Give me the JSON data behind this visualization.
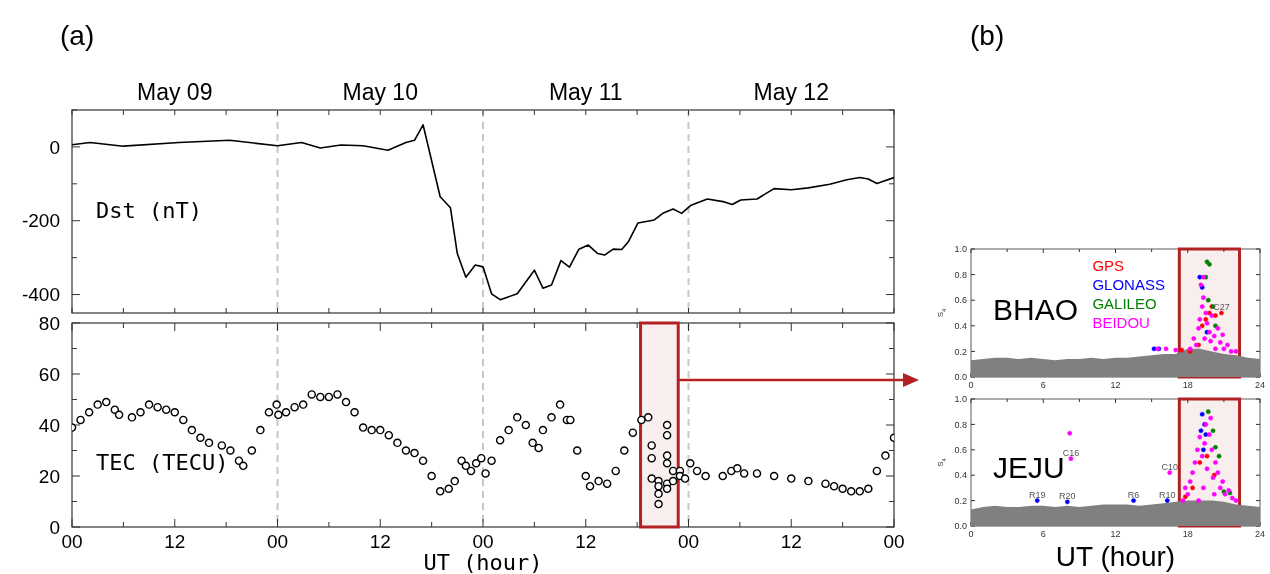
{
  "chart_data": [
    {
      "type": "line",
      "title": "(a)",
      "ylabel": "Dst (nT)",
      "xlim": [
        0,
        96
      ],
      "ylim": [
        -450,
        100
      ],
      "tick_labels": "y",
      "xticks": [
        {
          "value": 0,
          "label": null
        },
        {
          "value": 6,
          "label": null
        },
        {
          "value": 12,
          "label": null
        },
        {
          "value": 18,
          "label": null
        },
        {
          "value": 24,
          "label": null
        },
        {
          "value": 30,
          "label": null
        },
        {
          "value": 36,
          "label": null
        },
        {
          "value": 42,
          "label": null
        },
        {
          "value": 48,
          "label": null
        },
        {
          "value": 54,
          "label": null
        },
        {
          "value": 60,
          "label": null
        },
        {
          "value": 66,
          "label": null
        },
        {
          "value": 72,
          "label": null
        },
        {
          "value": 78,
          "label": null
        },
        {
          "value": 84,
          "label": null
        },
        {
          "value": 90,
          "label": null
        },
        {
          "value": 96,
          "label": null
        }
      ],
      "annotations": [
        "May 09",
        "May 10",
        "May 11",
        "May 12"
      ],
      "yticks": [
        {
          "value": -400,
          "label": "-400"
        },
        {
          "value": -300,
          "label": null
        },
        {
          "value": -200,
          "label": "-200"
        },
        {
          "value": -100,
          "label": null
        },
        0,
        {
          "value": 100,
          "label": null
        }
      ],
      "ref_lines": [
        {
          "axis": "x",
          "value": 24,
          "color": "#c8c8c8",
          "line_style": "dashed"
        },
        {
          "axis": "x",
          "value": 48,
          "color": "#c8c8c8",
          "line_style": "dashed"
        },
        {
          "axis": "x",
          "value": 72,
          "color": "#c8c8c8",
          "line_style": "dashed"
        }
      ],
      "series": [
        {
          "color": "#000000",
          "x": [
            0,
            2.1,
            6,
            12.5,
            18.4,
            24,
            26.8,
            29,
            31.4,
            34,
            36.9,
            39,
            40,
            41,
            43,
            44.2,
            45,
            46,
            47.1,
            48,
            49,
            50,
            52,
            54,
            55,
            56,
            57.1,
            58.1,
            59.2,
            60.3,
            61.4,
            62.2,
            63.2,
            64.2,
            65,
            66.1,
            68,
            69,
            70.2,
            71.2,
            72.3,
            74.2,
            76.2,
            77.1,
            78.1,
            80,
            82,
            84,
            86,
            88.5,
            90.5,
            92,
            93,
            94,
            96
          ],
          "values": [
            6,
            12,
            2,
            12,
            18,
            3,
            12,
            -3,
            5,
            3,
            -9,
            12,
            18,
            60,
            -135,
            -165,
            -289,
            -353,
            -320,
            -325,
            -398,
            -414,
            -398,
            -334,
            -383,
            -374,
            -308,
            -326,
            -277,
            -266,
            -289,
            -293,
            -277,
            -278,
            -256,
            -206,
            -198,
            -180,
            -168,
            -180,
            -158,
            -141,
            -149,
            -156,
            -144,
            -141,
            -113,
            -116,
            -111,
            -101,
            -89,
            -83,
            -87,
            -99,
            -83
          ]
        }
      ]
    },
    {
      "type": "scatter",
      "ylabel": "TEC (TECU)",
      "xlabel": "UT (hour)",
      "xlim": [
        0,
        96
      ],
      "ylim": [
        0,
        80
      ],
      "marker": "circle",
      "xticks": [
        {
          "value": 0,
          "label": "00"
        },
        {
          "value": 6,
          "label": null
        },
        {
          "value": 12,
          "label": "12"
        },
        {
          "value": 18,
          "label": null
        },
        {
          "value": 24,
          "label": "00"
        },
        {
          "value": 30,
          "label": null
        },
        {
          "value": 36,
          "label": "12"
        },
        {
          "value": 42,
          "label": null
        },
        {
          "value": 48,
          "label": "00"
        },
        {
          "value": 54,
          "label": null
        },
        {
          "value": 60,
          "label": "12"
        },
        {
          "value": 66,
          "label": null
        },
        {
          "value": 72,
          "label": "00"
        },
        {
          "value": 78,
          "label": null
        },
        {
          "value": 84,
          "label": "12"
        },
        {
          "value": 90,
          "label": null
        },
        {
          "value": 96,
          "label": "00"
        }
      ],
      "yticks": [
        0,
        {
          "value": 10,
          "label": null
        },
        20,
        {
          "value": 30,
          "label": null
        },
        40,
        {
          "value": 50,
          "label": null
        },
        60,
        {
          "value": 70,
          "label": null
        },
        80
      ],
      "ref_lines": [
        {
          "axis": "x",
          "value": 24,
          "color": "#c8c8c8",
          "line_style": "dashed"
        },
        {
          "axis": "x",
          "value": 48,
          "color": "#c8c8c8",
          "line_style": "dashed"
        },
        {
          "axis": "x",
          "value": 72,
          "color": "#c8c8c8",
          "line_style": "dashed"
        }
      ],
      "bands": [
        {
          "axis": "x",
          "from": 66.4,
          "to": 70.8,
          "color": "#b22222"
        }
      ],
      "series": [
        {
          "color": "#000000",
          "x": [
            0,
            1,
            2,
            3,
            4,
            5,
            5.5,
            7,
            8,
            9,
            10,
            11,
            12,
            13,
            14,
            15,
            16,
            17.5,
            18.5,
            19.5,
            20,
            21,
            22,
            23,
            23.9,
            24.1,
            25,
            26,
            27,
            28,
            29,
            30,
            31,
            32,
            33,
            34,
            35,
            36,
            37,
            38,
            39,
            40,
            41,
            42,
            43,
            44,
            44.7,
            45.5,
            46,
            46.6,
            47.2,
            47.8,
            48.3,
            49,
            50,
            51,
            52,
            53,
            53.8,
            54.5,
            55,
            56,
            57,
            57.8,
            58.2,
            59,
            60,
            60.5,
            61.5,
            62.5,
            63.5,
            64.5,
            65.5,
            66.5,
            67.3,
            67.7,
            67.7,
            67.7,
            68.5,
            68.5,
            68.5,
            68.5,
            69.5,
            69.5,
            69.5,
            69.5,
            69.5,
            69.5,
            70.2,
            70.2,
            71,
            71,
            71.6,
            72.2,
            73,
            74,
            76,
            77,
            77.7,
            78.5,
            80,
            82,
            84,
            86,
            88,
            89,
            90,
            91,
            92,
            93,
            94,
            95,
            96
          ],
          "values": [
            39,
            42,
            45,
            48,
            49,
            46,
            44,
            43,
            45,
            48,
            47,
            46,
            45,
            42,
            38,
            35,
            33,
            32,
            30,
            26,
            24,
            30,
            38,
            45,
            48,
            44,
            45,
            47,
            48,
            52,
            51,
            51,
            52,
            49,
            45,
            39,
            38,
            38,
            36,
            33,
            30,
            29,
            26,
            20,
            14,
            15,
            18,
            26,
            24,
            22,
            25,
            27,
            21,
            26,
            34,
            38,
            43,
            40,
            33,
            31,
            38,
            43,
            48,
            42,
            42,
            30,
            20,
            16,
            18,
            17,
            22,
            30,
            37,
            42,
            43,
            32,
            27,
            19,
            18,
            13,
            9,
            16,
            40,
            36,
            28,
            25,
            17,
            15,
            22,
            18,
            22,
            20,
            19,
            25,
            22,
            20,
            20,
            22,
            23,
            21,
            21,
            20,
            19,
            18,
            17,
            16,
            15,
            14,
            14,
            15,
            22,
            28,
            35
          ]
        }
      ]
    },
    {
      "type": "scatter",
      "title": "(b)",
      "ylabel": "S$_{4}$",
      "xlim": [
        0,
        24
      ],
      "ylim": [
        0,
        1
      ],
      "legend": "top",
      "annotations": [
        "BHAO",
        {
          "text": "C27",
          "x": 20.8,
          "y": 0.5
        }
      ],
      "xticks": [
        0,
        {
          "value": 3,
          "label": null
        },
        6,
        {
          "value": 9,
          "label": null
        },
        12,
        {
          "value": 15,
          "label": null
        },
        18,
        {
          "value": 21,
          "label": null
        },
        24
      ],
      "yticks": [
        {
          "value": 0,
          "label": "0.0"
        },
        {
          "value": 0.2,
          "label": "0.2"
        },
        {
          "value": 0.4,
          "label": "0.4"
        },
        {
          "value": 0.6,
          "label": "0.6"
        },
        {
          "value": 0.8,
          "label": "0.8"
        },
        {
          "value": 1,
          "label": "1.0"
        }
      ],
      "bands": [
        {
          "axis": "x",
          "from": 17.3,
          "to": 22.3,
          "color": "#b22222"
        }
      ],
      "series": [
        {
          "type": "area",
          "color": "#808080",
          "x": [
            0,
            1,
            2,
            3,
            4,
            5,
            6,
            7,
            8,
            9,
            10,
            11,
            12,
            13,
            14,
            15,
            16,
            17,
            18,
            19,
            20,
            21,
            22,
            23,
            24
          ],
          "values": [
            0.13,
            0.14,
            0.15,
            0.15,
            0.14,
            0.15,
            0.14,
            0.13,
            0.14,
            0.14,
            0.15,
            0.14,
            0.15,
            0.15,
            0.16,
            0.17,
            0.18,
            0.18,
            0.22,
            0.22,
            0.2,
            0.18,
            0.17,
            0.15,
            0.14
          ]
        },
        {
          "name": "GPS",
          "color": "#ff0000",
          "marker": "circle",
          "x": [
            19.5,
            19.8,
            20,
            20.3,
            19.2,
            18.9,
            18.2,
            17.5,
            20.8
          ],
          "values": [
            0.45,
            0.5,
            0.55,
            0.48,
            0.4,
            0.25,
            0.2,
            0.21,
            0.5
          ]
        },
        {
          "name": "GLONASS",
          "color": "#0000ff",
          "marker": "circle",
          "x": [
            19,
            19.2,
            19.6,
            15.2,
            15.6
          ],
          "values": [
            0.78,
            0.7,
            0.35,
            0.22,
            0.22
          ]
        },
        {
          "name": "GALILEO",
          "color": "#008000",
          "marker": "circle",
          "x": [
            19.6,
            19.8,
            19.5,
            19.7,
            20.1,
            20.3
          ],
          "values": [
            0.9,
            0.88,
            0.78,
            0.6,
            0.55,
            0.4
          ]
        },
        {
          "name": "BEIDOU",
          "color": "#ff00ff",
          "marker": "circle",
          "x": [
            18.2,
            18.5,
            18.7,
            18.9,
            19,
            19.2,
            19.3,
            19.4,
            19.5,
            19.6,
            19.8,
            19.9,
            20,
            20.2,
            20.3,
            20.5,
            20.7,
            20.9,
            21,
            21.3,
            21.6,
            19.1,
            19.3,
            22,
            17,
            16.2,
            15.5
          ],
          "values": [
            0.22,
            0.3,
            0.25,
            0.38,
            0.45,
            0.55,
            0.62,
            0.3,
            0.5,
            0.42,
            0.35,
            0.28,
            0.48,
            0.32,
            0.22,
            0.38,
            0.27,
            0.33,
            0.22,
            0.25,
            0.2,
            0.72,
            0.78,
            0.2,
            0.21,
            0.22,
            0.22
          ]
        }
      ]
    },
    {
      "type": "scatter",
      "ylabel": "S$_{4}$",
      "xlabel": "UT (hour)",
      "xlim": [
        0,
        24
      ],
      "ylim": [
        0,
        1
      ],
      "annotations": [
        "JEJU",
        {
          "text": "R19",
          "x": 5.5,
          "y": 0.2
        },
        {
          "text": "R20",
          "x": 8,
          "y": 0.19
        },
        {
          "text": "R6",
          "x": 13.5,
          "y": 0.2
        },
        {
          "text": "R10",
          "x": 16.3,
          "y": 0.2
        },
        {
          "text": "C16",
          "x": 8.3,
          "y": 0.53
        },
        {
          "text": "C10",
          "x": 16.5,
          "y": 0.42
        }
      ],
      "xticks": [
        0,
        {
          "value": 3,
          "label": null
        },
        6,
        {
          "value": 9,
          "label": null
        },
        12,
        {
          "value": 15,
          "label": null
        },
        18,
        {
          "value": 21,
          "label": null
        },
        24
      ],
      "yticks": [
        {
          "value": 0,
          "label": "0.0"
        },
        {
          "value": 0.2,
          "label": "0.2"
        },
        {
          "value": 0.4,
          "label": "0.4"
        },
        {
          "value": 0.6,
          "label": "0.6"
        },
        {
          "value": 0.8,
          "label": "0.8"
        },
        {
          "value": 1,
          "label": "1.0"
        }
      ],
      "bands": [
        {
          "axis": "x",
          "from": 17.3,
          "to": 22.3,
          "color": "#b22222"
        }
      ],
      "series": [
        {
          "type": "area",
          "color": "#808080",
          "x": [
            0,
            1,
            2,
            3,
            4,
            5,
            6,
            7,
            8,
            9,
            10,
            11,
            12,
            13,
            14,
            15,
            16,
            17,
            18,
            19,
            20,
            21,
            22,
            23,
            24
          ],
          "values": [
            0.13,
            0.15,
            0.16,
            0.15,
            0.15,
            0.16,
            0.16,
            0.15,
            0.16,
            0.15,
            0.16,
            0.17,
            0.17,
            0.17,
            0.16,
            0.17,
            0.18,
            0.19,
            0.2,
            0.2,
            0.2,
            0.19,
            0.17,
            0.16,
            0.15
          ]
        },
        {
          "color": "#ff0000",
          "marker": "circle",
          "x": [
            19,
            19.6,
            18.4,
            20.2,
            17.8
          ],
          "values": [
            0.5,
            0.55,
            0.3,
            0.4,
            0.23
          ]
        },
        {
          "color": "#0000ff",
          "marker": "circle",
          "x": [
            19.2,
            19.4,
            19.1,
            19.5,
            19.3,
            5.5,
            8,
            13.5,
            16.3
          ],
          "values": [
            0.88,
            0.8,
            0.75,
            0.72,
            0.6,
            0.2,
            0.19,
            0.2,
            0.2
          ]
        },
        {
          "color": "#008000",
          "marker": "circle",
          "x": [
            19.7,
            20.1,
            20.3,
            20.6,
            21,
            21.5
          ],
          "values": [
            0.9,
            0.75,
            0.62,
            0.55,
            0.27,
            0.26
          ]
        },
        {
          "color": "#ff00ff",
          "marker": "circle",
          "x": [
            17.6,
            17.8,
            18,
            18.2,
            18.4,
            18.6,
            18.8,
            19,
            19.2,
            19.4,
            19.5,
            19.6,
            19.8,
            20,
            20.1,
            20.3,
            20.5,
            20.7,
            20.9,
            21.1,
            21.4,
            21.7,
            22,
            8.2,
            19.3,
            20.2,
            18.9,
            19.9,
            8.3,
            16.5
          ],
          "values": [
            0.2,
            0.3,
            0.25,
            0.35,
            0.42,
            0.5,
            0.6,
            0.7,
            0.55,
            0.65,
            0.8,
            0.45,
            0.72,
            0.6,
            0.38,
            0.5,
            0.42,
            0.3,
            0.35,
            0.25,
            0.28,
            0.22,
            0.2,
            0.73,
            0.3,
            0.25,
            0.2,
            0.85,
            0.53,
            0.42
          ]
        }
      ]
    }
  ]
}
